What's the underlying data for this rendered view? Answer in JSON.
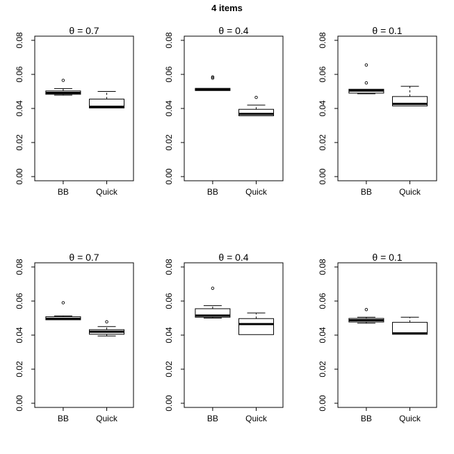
{
  "figure": {
    "title": "4 items",
    "background": "#ffffff",
    "line_color": "#000000"
  },
  "chart_data": [
    {
      "type": "boxplot",
      "title": "θ = 0.7",
      "row": 0,
      "col": 0,
      "categories": [
        "BB",
        "Quick"
      ],
      "ylim": [
        0,
        0.08
      ],
      "ytick_values": [
        0,
        0.02,
        0.04,
        0.06,
        0.08
      ],
      "ytick_labels": [
        "0.00",
        "0.02",
        "0.04",
        "0.06",
        "0.08"
      ],
      "grid": false,
      "series": [
        {
          "name": "BB",
          "low": 0.0478,
          "q1": 0.0483,
          "median": 0.0492,
          "q3": 0.0503,
          "high": 0.0517,
          "outliers": [
            0.0565
          ]
        },
        {
          "name": "Quick",
          "low": 0.0403,
          "q1": 0.0403,
          "median": 0.041,
          "q3": 0.0455,
          "high": 0.05,
          "outliers": []
        }
      ]
    },
    {
      "type": "boxplot",
      "title": "θ = 0.4",
      "row": 0,
      "col": 1,
      "categories": [
        "BB",
        "Quick"
      ],
      "ylim": [
        0,
        0.08
      ],
      "ytick_values": [
        0,
        0.02,
        0.04,
        0.06,
        0.08
      ],
      "ytick_labels": [
        "0.00",
        "0.02",
        "0.04",
        "0.06",
        "0.08"
      ],
      "grid": false,
      "series": [
        {
          "name": "BB",
          "low": 0.0505,
          "q1": 0.0505,
          "median": 0.0512,
          "q3": 0.0518,
          "high": 0.0518,
          "outliers": [
            0.0578,
            0.0585
          ]
        },
        {
          "name": "Quick",
          "low": 0.0357,
          "q1": 0.0357,
          "median": 0.0368,
          "q3": 0.0395,
          "high": 0.042,
          "outliers": [
            0.0465
          ]
        }
      ]
    },
    {
      "type": "boxplot",
      "title": "θ = 0.1",
      "row": 0,
      "col": 2,
      "categories": [
        "BB",
        "Quick"
      ],
      "ylim": [
        0,
        0.08
      ],
      "ytick_values": [
        0,
        0.02,
        0.04,
        0.06,
        0.08
      ],
      "ytick_labels": [
        "0.00",
        "0.02",
        "0.04",
        "0.06",
        "0.08"
      ],
      "grid": false,
      "series": [
        {
          "name": "BB",
          "low": 0.0486,
          "q1": 0.049,
          "median": 0.0505,
          "q3": 0.0513,
          "high": 0.0513,
          "outliers": [
            0.055,
            0.0655
          ]
        },
        {
          "name": "Quick",
          "low": 0.0413,
          "q1": 0.0415,
          "median": 0.0427,
          "q3": 0.047,
          "high": 0.053,
          "outliers": []
        }
      ]
    },
    {
      "type": "boxplot",
      "title": "θ = 0.7",
      "row": 1,
      "col": 0,
      "categories": [
        "BB",
        "Quick"
      ],
      "ylim": [
        0,
        0.08
      ],
      "ytick_values": [
        0,
        0.02,
        0.04,
        0.06,
        0.08
      ],
      "ytick_labels": [
        "0.00",
        "0.02",
        "0.04",
        "0.06",
        "0.08"
      ],
      "grid": false,
      "series": [
        {
          "name": "BB",
          "low": 0.0488,
          "q1": 0.049,
          "median": 0.0496,
          "q3": 0.0508,
          "high": 0.0513,
          "outliers": [
            0.059
          ]
        },
        {
          "name": "Quick",
          "low": 0.0395,
          "q1": 0.0405,
          "median": 0.042,
          "q3": 0.0432,
          "high": 0.045,
          "outliers": [
            0.0478
          ]
        }
      ]
    },
    {
      "type": "boxplot",
      "title": "θ = 0.4",
      "row": 1,
      "col": 1,
      "categories": [
        "BB",
        "Quick"
      ],
      "ylim": [
        0,
        0.08
      ],
      "ytick_values": [
        0,
        0.02,
        0.04,
        0.06,
        0.08
      ],
      "ytick_labels": [
        "0.00",
        "0.02",
        "0.04",
        "0.06",
        "0.08"
      ],
      "grid": false,
      "series": [
        {
          "name": "BB",
          "low": 0.05,
          "q1": 0.0505,
          "median": 0.0515,
          "q3": 0.0555,
          "high": 0.0573,
          "outliers": [
            0.0675
          ]
        },
        {
          "name": "Quick",
          "low": 0.04,
          "q1": 0.0403,
          "median": 0.0465,
          "q3": 0.0497,
          "high": 0.053,
          "outliers": []
        }
      ]
    },
    {
      "type": "boxplot",
      "title": "θ = 0.1",
      "row": 1,
      "col": 2,
      "categories": [
        "BB",
        "Quick"
      ],
      "ylim": [
        0,
        0.08
      ],
      "ytick_values": [
        0,
        0.02,
        0.04,
        0.06,
        0.08
      ],
      "ytick_labels": [
        "0.00",
        "0.02",
        "0.04",
        "0.06",
        "0.08"
      ],
      "grid": false,
      "series": [
        {
          "name": "BB",
          "low": 0.047,
          "q1": 0.0477,
          "median": 0.0487,
          "q3": 0.0498,
          "high": 0.0505,
          "outliers": [
            0.055
          ]
        },
        {
          "name": "Quick",
          "low": 0.0403,
          "q1": 0.0405,
          "median": 0.041,
          "q3": 0.0475,
          "high": 0.0505,
          "outliers": []
        }
      ]
    }
  ]
}
